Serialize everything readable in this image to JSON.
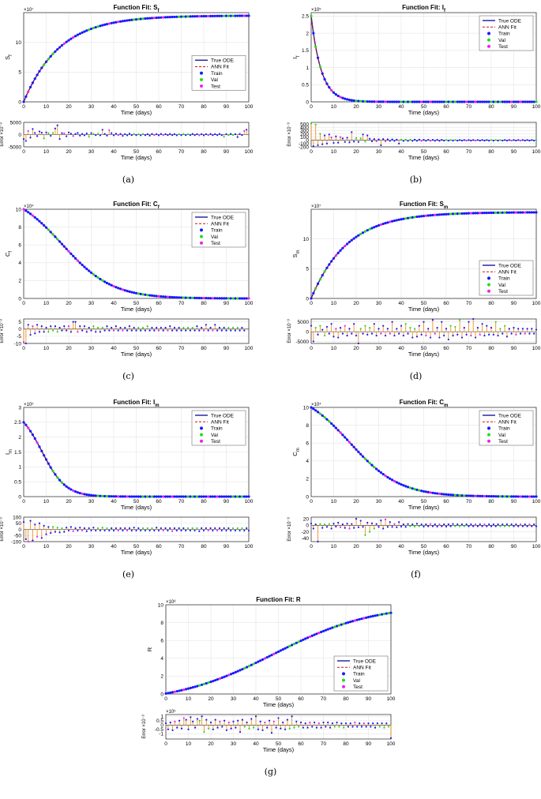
{
  "figure": {
    "colors": {
      "true_ode": "#1a1a9c",
      "ann_fit": "#cc1111",
      "train": "#1a1aff",
      "val": "#22dd22",
      "test": "#ee22ee",
      "stem": "#f09020",
      "grid": "#e4e4e4"
    },
    "legend": [
      "True ODE",
      "ANN Fit",
      "Train",
      "Val",
      "Test"
    ],
    "error_ylabel": "Error ×10⁻³",
    "xlabel": "Time (days)"
  },
  "chart_data": [
    {
      "id": "a",
      "caption": "(a)",
      "type": "line",
      "legend_position": "center-right",
      "title_main": "Function Fit: S",
      "title_sub": "f",
      "ylabel_main": "S",
      "ylabel_sub": "f",
      "exponent": "×10⁷",
      "xlabel": "Time (days)",
      "xlim": [
        0,
        100
      ],
      "xticks": [
        "0",
        "10",
        "20",
        "30",
        "40",
        "50",
        "60",
        "70",
        "80",
        "90",
        "100"
      ],
      "ylim": [
        0,
        15
      ],
      "yticks": [
        0,
        5,
        10
      ],
      "yticklabels": [
        "0",
        "5",
        "10"
      ],
      "curve": {
        "kind": "growth",
        "y0": 0,
        "y_end": 14.5,
        "tau": 16
      },
      "error": {
        "ylim": [
          -5000,
          5000
        ],
        "yticks": [
          -5000,
          0,
          5000
        ],
        "yticklabels": [
          "-5000",
          "0",
          "5000"
        ],
        "values": [
          -1800,
          -2600,
          1500,
          -1200,
          2300,
          700,
          -600,
          1300,
          800,
          -1600,
          900,
          600,
          -500,
          700,
          2500,
          3800,
          -1800,
          600,
          500,
          -700,
          900,
          400,
          -600,
          300,
          700,
          -400,
          300,
          -300,
          500,
          -900,
          600,
          300,
          -200,
          400,
          -300,
          2000,
          300,
          -400,
          1800,
          600,
          -300,
          400,
          -200,
          300,
          -500,
          200,
          -300,
          400,
          -200,
          300,
          -200,
          200,
          -300,
          300,
          -200,
          200,
          -400,
          300,
          -200,
          200,
          -300,
          300,
          -200,
          200,
          -200,
          300,
          -200,
          200,
          -300,
          200,
          -200,
          300,
          -200,
          200,
          -200,
          300,
          -200,
          200,
          -300,
          200,
          -300,
          200,
          -200,
          300,
          -200,
          200,
          -200,
          300,
          -200,
          -900,
          200,
          -200,
          300,
          -200,
          200,
          -1000,
          300,
          -200,
          1500,
          2000
        ]
      }
    },
    {
      "id": "b",
      "caption": "(b)",
      "type": "line",
      "legend_position": "top-right",
      "title_main": "Function Fit: I",
      "title_sub": "f",
      "ylabel_main": "I",
      "ylabel_sub": "f",
      "exponent": "×10⁵",
      "xlabel": "Time (days)",
      "xlim": [
        0,
        100
      ],
      "xticks": [
        "0",
        "10",
        "20",
        "30",
        "40",
        "50",
        "60",
        "70",
        "80",
        "90",
        "100"
      ],
      "ylim": [
        0,
        2.6
      ],
      "yticks": [
        0,
        0.5,
        1,
        1.5,
        2,
        2.5
      ],
      "yticklabels": [
        "0",
        "0.5",
        "1",
        "1.5",
        "2",
        "2.5"
      ],
      "curve": {
        "kind": "decay",
        "y0": 2.5,
        "y_end": 0,
        "tau": 4.5
      },
      "error": {
        "ylim": [
          -200,
          550
        ],
        "yticks": [
          -200,
          -100,
          0,
          100,
          200,
          300,
          400,
          500
        ],
        "yticklabels": [
          "-200",
          "-100",
          "0",
          "100",
          "200",
          "300",
          "400",
          "500"
        ],
        "values": [
          520,
          -180,
          480,
          -150,
          200,
          -120,
          150,
          -100,
          180,
          90,
          -80,
          120,
          -70,
          100,
          60,
          -50,
          80,
          -60,
          250,
          -40,
          70,
          -50,
          60,
          180,
          -40,
          150,
          50,
          -30,
          40,
          -30,
          30,
          -150,
          40,
          -30,
          30,
          -20,
          30,
          -20,
          20,
          -100,
          20,
          -20,
          20,
          -20,
          20,
          -20,
          20,
          -15,
          20,
          -15,
          15,
          -15,
          15,
          -15,
          15,
          -15,
          15,
          -15,
          15,
          -10,
          10,
          -10,
          10,
          -10,
          10,
          -10,
          10,
          -10,
          10,
          -10,
          10,
          -10,
          10,
          -10,
          10,
          -10,
          10,
          -10,
          10,
          -10,
          10,
          -10,
          10,
          -10,
          10,
          -10,
          10,
          -10,
          10,
          -10,
          10,
          -10,
          10,
          -10,
          10,
          -10,
          10,
          -10,
          10,
          -10,
          10
        ]
      }
    },
    {
      "id": "c",
      "caption": "(c)",
      "type": "line",
      "legend_position": "top-right",
      "title_main": "Function Fit: C",
      "title_sub": "f",
      "ylabel_main": "C",
      "ylabel_sub": "f",
      "exponent": "×10⁴",
      "xlabel": "Time (days)",
      "xlim": [
        0,
        100
      ],
      "xticks": [
        "0",
        "10",
        "20",
        "30",
        "40",
        "50",
        "60",
        "70",
        "80",
        "90",
        "100"
      ],
      "ylim": [
        0,
        10
      ],
      "yticks": [
        0,
        2,
        4,
        6,
        8,
        10
      ],
      "yticklabels": [
        "0",
        "2",
        "4",
        "6",
        "8",
        "10"
      ],
      "curve": {
        "kind": "sigmoid-decay",
        "y0": 10,
        "y_end": 0,
        "tau": 19
      },
      "error": {
        "ylim": [
          -10,
          7
        ],
        "yticks": [
          -10,
          -5,
          0,
          5
        ],
        "yticklabels": [
          "-10",
          "-5",
          "0",
          "5"
        ],
        "values": [
          -9,
          -10,
          3,
          -4,
          2,
          -3,
          3,
          -2,
          2,
          -2,
          1,
          -2,
          2,
          -1,
          2,
          -2,
          1,
          -1,
          2,
          -1,
          2,
          -2,
          5,
          5,
          -2,
          2,
          -1,
          2,
          -2,
          1,
          -1,
          2,
          -2,
          1,
          -2,
          1,
          -1,
          2,
          -1,
          1,
          -1,
          2,
          -1,
          1,
          -1,
          1,
          -1,
          2,
          -1,
          1,
          -1,
          1,
          -1,
          1,
          -1,
          2,
          -1,
          1,
          -1,
          1,
          -1,
          1,
          -1,
          1,
          -1,
          2,
          -1,
          1,
          -1,
          1,
          -1,
          1,
          -1,
          1,
          -1,
          1,
          -1,
          2,
          -1,
          1,
          -1,
          3,
          -1,
          1,
          -1,
          3,
          -1,
          1,
          -1,
          1,
          -1,
          1,
          -1,
          1,
          -1,
          1,
          -1,
          1,
          -1
        ]
      }
    },
    {
      "id": "d",
      "caption": "(d)",
      "type": "line",
      "legend_position": "bottom-right",
      "title_main": "Function Fit: S",
      "title_sub": "m",
      "ylabel_main": "S",
      "ylabel_sub": "m",
      "exponent": "×10⁷",
      "xlabel": "Time (days)",
      "xlim": [
        0,
        100
      ],
      "xticks": [
        "0",
        "10",
        "20",
        "30",
        "40",
        "50",
        "60",
        "70",
        "80",
        "90",
        "100"
      ],
      "ylim": [
        0,
        15
      ],
      "yticks": [
        0,
        5,
        10
      ],
      "yticklabels": [
        "0",
        "5",
        "10"
      ],
      "curve": {
        "kind": "growth",
        "y0": 0,
        "y_end": 14.5,
        "tau": 16
      },
      "error": {
        "ylim": [
          -6000,
          6500
        ],
        "yticks": [
          -5000,
          0,
          5000
        ],
        "yticklabels": [
          "-5000",
          "0",
          "5000"
        ],
        "values": [
          3000,
          -5000,
          2000,
          -1500,
          3000,
          1000,
          -2000,
          2500,
          -1000,
          4000,
          -2500,
          1500,
          -3000,
          2000,
          -1000,
          3000,
          -2000,
          1500,
          -1000,
          4000,
          -2000,
          -6000,
          1500,
          -1000,
          3000,
          -1500,
          2000,
          -1000,
          4000,
          -2000,
          1500,
          -1000,
          3000,
          -2000,
          1500,
          -1000,
          5000,
          -2000,
          1500,
          -1000,
          3000,
          -2000,
          4000,
          -1000,
          2000,
          -3000,
          1500,
          -2500,
          3000,
          -1500,
          5000,
          -2000,
          1500,
          -3000,
          6000,
          -1000,
          2000,
          -3000,
          5000,
          -2000,
          1500,
          -4000,
          3000,
          -2000,
          2500,
          -1500,
          6000,
          -3000,
          2000,
          -1500,
          5000,
          -2000,
          6500,
          -3000,
          2000,
          -1500,
          4000,
          -2000,
          3000,
          -1500,
          2000,
          -1500,
          5000,
          -2000,
          1500,
          -1000,
          3000,
          -2500,
          1500,
          -1000,
          2000,
          -1500,
          1500,
          -1000,
          1500,
          -1000,
          1500,
          -1000,
          1500,
          -1000,
          1000
        ]
      }
    },
    {
      "id": "e",
      "caption": "(e)",
      "type": "line",
      "legend_position": "top-right",
      "title_main": "Function Fit: I",
      "title_sub": "m",
      "ylabel_main": "I",
      "ylabel_sub": "m",
      "exponent": "×10⁵",
      "xlabel": "Time (days)",
      "xlim": [
        0,
        100
      ],
      "xticks": [
        "0",
        "10",
        "20",
        "30",
        "40",
        "50",
        "60",
        "70",
        "80",
        "90",
        "100"
      ],
      "ylim": [
        0,
        3
      ],
      "yticks": [
        0,
        0.5,
        1,
        1.5,
        2,
        2.5,
        3
      ],
      "yticklabels": [
        "0",
        "0.5",
        "1",
        "1.5",
        "2",
        "2.5",
        "3"
      ],
      "curve": {
        "kind": "sigmoid-decay",
        "y0": 2.5,
        "y_end": 0,
        "tau": 9
      },
      "error": {
        "ylim": [
          -100,
          100
        ],
        "yticks": [
          -100,
          -50,
          0,
          50,
          100
        ],
        "yticklabels": [
          "-100",
          "-50",
          "0",
          "50",
          "100"
        ],
        "values": [
          60,
          -80,
          -100,
          70,
          -90,
          40,
          -60,
          50,
          -70,
          30,
          -40,
          20,
          -30,
          20,
          -20,
          15,
          -25,
          10,
          -20,
          15,
          -10,
          20,
          -15,
          10,
          -10,
          15,
          -10,
          10,
          -15,
          10,
          -10,
          15,
          -10,
          10,
          -10,
          15,
          -10,
          10,
          -10,
          10,
          -10,
          10,
          -10,
          10,
          -10,
          10,
          -10,
          10,
          -10,
          15,
          -10,
          10,
          -10,
          10,
          -10,
          10,
          -10,
          10,
          -10,
          15,
          -10,
          10,
          -10,
          10,
          -10,
          10,
          -15,
          10,
          -10,
          10,
          -10,
          10,
          -10,
          10,
          -10,
          10,
          -10,
          10,
          -15,
          10,
          -10,
          10,
          -10,
          10,
          -10,
          10,
          -10,
          10,
          -10,
          10,
          -10,
          10,
          -10,
          10,
          -10,
          10,
          -10,
          10,
          -10,
          10,
          -10
        ]
      }
    },
    {
      "id": "f",
      "caption": "(f)",
      "type": "line",
      "legend_position": "top-right",
      "title_main": "Function Fit: C",
      "title_sub": "m",
      "ylabel_main": "C",
      "ylabel_sub": "m",
      "exponent": "×10⁴",
      "xlabel": "Time (days)",
      "xlim": [
        0,
        100
      ],
      "xticks": [
        "0",
        "10",
        "20",
        "30",
        "40",
        "50",
        "60",
        "70",
        "80",
        "90",
        "100"
      ],
      "ylim": [
        0,
        10
      ],
      "yticks": [
        0,
        2,
        4,
        6,
        8,
        10
      ],
      "yticklabels": [
        "0",
        "2",
        "4",
        "6",
        "8",
        "10"
      ],
      "curve": {
        "kind": "sigmoid-decay",
        "y0": 10,
        "y_end": 0,
        "tau": 19
      },
      "error": {
        "ylim": [
          -50,
          25
        ],
        "yticks": [
          -40,
          -20,
          0,
          20
        ],
        "yticklabels": [
          "-40",
          "-20",
          "0",
          "20"
        ],
        "values": [
          5,
          -10,
          3,
          -50,
          4,
          -8,
          3,
          -5,
          4,
          -10,
          5,
          -4,
          8,
          -6,
          3,
          -8,
          5,
          -10,
          4,
          -8,
          20,
          -6,
          14,
          -5,
          -30,
          8,
          -20,
          6,
          -10,
          4,
          -5,
          15,
          -10,
          18,
          -5,
          10,
          -5,
          4,
          -6,
          10,
          -4,
          3,
          -5,
          4,
          -3,
          3,
          -4,
          5,
          -3,
          3,
          -4,
          3,
          -3,
          4,
          -3,
          3,
          -4,
          3,
          -3,
          3,
          -4,
          3,
          -3,
          4,
          -3,
          3,
          -3,
          3,
          -3,
          3,
          -3,
          3,
          -3,
          3,
          -3,
          3,
          -3,
          3,
          -3,
          3,
          -3,
          3,
          -3,
          3,
          -3,
          3,
          -3,
          3,
          -3,
          3,
          -3,
          3,
          -3,
          3,
          -3,
          3,
          -3,
          3,
          -3,
          3,
          -3
        ]
      }
    },
    {
      "id": "g",
      "caption": "(g)",
      "type": "line",
      "legend_position": "bottom-right",
      "title_main": "Function Fit: R",
      "title_sub": "",
      "ylabel_main": "R",
      "ylabel_sub": "",
      "exponent": "×10⁸",
      "xlabel": "Time (days)",
      "xlim": [
        0,
        100
      ],
      "xticks": [
        "0",
        "10",
        "20",
        "30",
        "40",
        "50",
        "60",
        "70",
        "80",
        "90",
        "100"
      ],
      "ylim": [
        0,
        10
      ],
      "yticks": [
        0,
        2,
        4,
        6,
        8,
        10
      ],
      "yticklabels": [
        "0",
        "2",
        "4",
        "6",
        "8",
        "10"
      ],
      "curve": {
        "kind": "logistic",
        "y0": 0.05,
        "y_end": 9.1,
        "tau": 0
      },
      "error": {
        "ylim": [
          -1.6,
          1.2
        ],
        "yticks": [
          -1,
          -0.5,
          0,
          0.5,
          1
        ],
        "yticklabels": [
          "-1",
          "-0.5",
          "0",
          "0.5",
          "1"
        ],
        "exponent": "×10⁵",
        "values": [
          0.2,
          -0.5,
          0.3,
          -0.6,
          0.4,
          -0.3,
          0.5,
          -0.4,
          0.8,
          0.6,
          -0.5,
          0.9,
          0.4,
          -0.3,
          0.7,
          0.5,
          1.0,
          -0.8,
          0.6,
          -0.4,
          0.3,
          -0.5,
          0.6,
          -0.3,
          0.4,
          -0.2,
          0.5,
          -0.6,
          0.3,
          -0.4,
          0.4,
          -0.3,
          0.5,
          -0.8,
          0.6,
          -0.2,
          0.3,
          -0.4,
          0.7,
          -0.3,
          1.0,
          -0.5,
          0.4,
          -0.6,
          0.3,
          -0.3,
          0.5,
          -0.9,
          0.4,
          -0.3,
          0.8,
          -0.4,
          0.3,
          -0.5,
          0.6,
          -0.4,
          1.0,
          -0.3,
          0.4,
          -0.2,
          0.3,
          -0.3,
          0.2,
          -0.3,
          0.3,
          -0.2,
          0.3,
          -0.3,
          0.2,
          -0.3,
          0.3,
          -0.2,
          0.3,
          -0.3,
          0.2,
          -0.2,
          0.3,
          -0.2,
          0.2,
          -0.3,
          0.2,
          -0.2,
          0.2,
          -0.2,
          0.3,
          -0.2,
          0.2,
          -0.2,
          0.2,
          -0.2,
          0.2,
          -0.2,
          0.2,
          -0.3,
          0.2,
          -0.2,
          0.2,
          -0.3,
          0.2,
          -0.2,
          -1.5
        ]
      }
    }
  ]
}
